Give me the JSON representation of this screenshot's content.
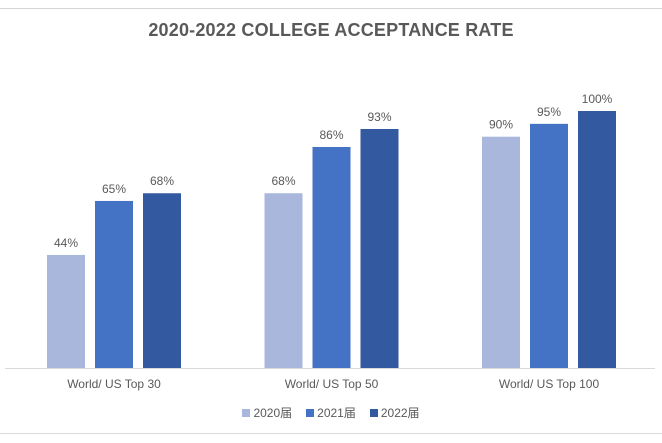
{
  "chart_data": {
    "type": "bar",
    "title": "2020-2022 COLLEGE ACCEPTANCE RATE",
    "xlabel": "",
    "ylabel": "",
    "ylim": [
      0,
      100
    ],
    "grid": false,
    "legend_position": "bottom",
    "categories": [
      "World/ US Top 30",
      "World/ US Top 50",
      "World/ US Top 100"
    ],
    "series": [
      {
        "name": "2020届",
        "color": "#A9B7DC",
        "values": [
          44,
          68,
          90
        ],
        "labels": [
          "44%",
          "68%",
          "90%"
        ]
      },
      {
        "name": "2021届",
        "color": "#4472C4",
        "values": [
          65,
          86,
          95
        ],
        "labels": [
          "65%",
          "86%",
          "95%"
        ]
      },
      {
        "name": "2022届",
        "color": "#335AA1",
        "values": [
          68,
          93,
          100
        ],
        "labels": [
          "68%",
          "93%",
          "100%"
        ]
      }
    ]
  },
  "colors": {
    "text": "#595959",
    "axis": "#d9d9d9"
  }
}
